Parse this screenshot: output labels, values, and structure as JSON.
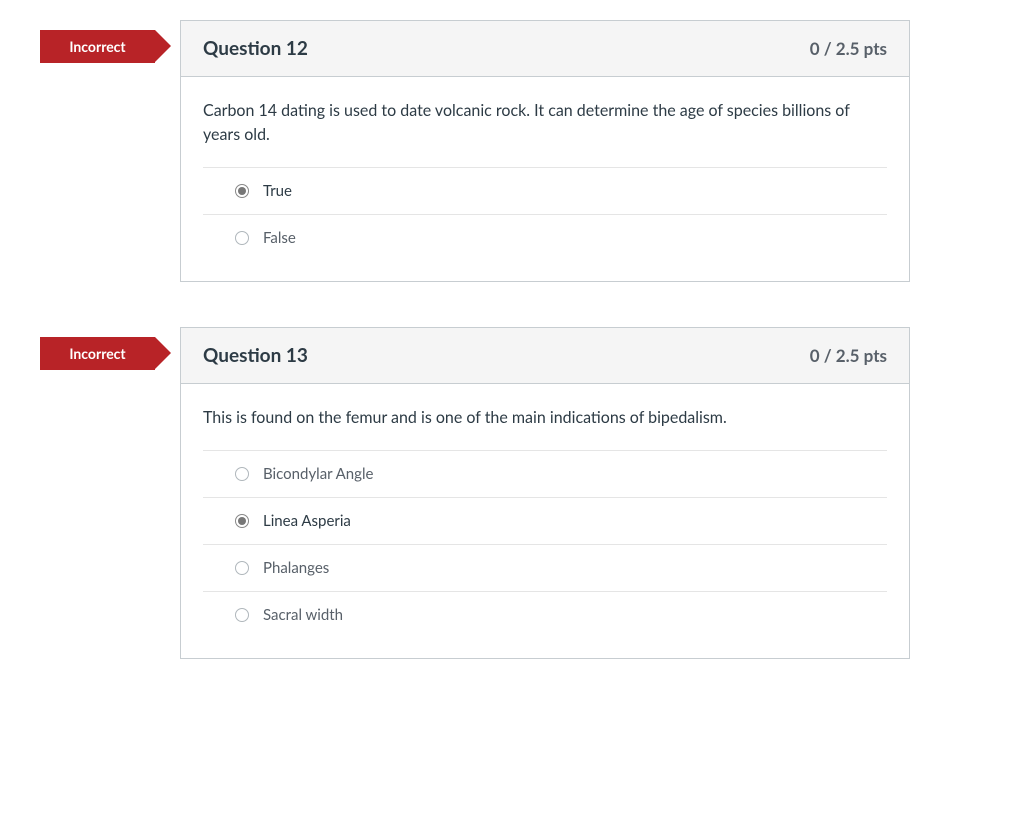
{
  "colors": {
    "badge_bg": "#b82327",
    "badge_text": "#ffffff",
    "card_border": "#c7cdd1",
    "header_bg": "#f5f5f5",
    "title_text": "#2d3b45",
    "points_text": "#586069",
    "body_text": "#2d3b45",
    "answer_text": "#586069",
    "divider": "#e5e5e5"
  },
  "questions": [
    {
      "status": "Incorrect",
      "title": "Question 12",
      "points": "0 / 2.5 pts",
      "text": "Carbon 14 dating is used to date volcanic rock.  It can determine the age of species billions of years old.",
      "answers": [
        {
          "label": "True",
          "selected": true
        },
        {
          "label": "False",
          "selected": false
        }
      ]
    },
    {
      "status": "Incorrect",
      "title": "Question 13",
      "points": "0 / 2.5 pts",
      "text": "This is found on the femur and is one of the main indications of bipedalism.",
      "answers": [
        {
          "label": "Bicondylar Angle",
          "selected": false
        },
        {
          "label": "Linea Asperia",
          "selected": true
        },
        {
          "label": "Phalanges",
          "selected": false
        },
        {
          "label": "Sacral width",
          "selected": false
        }
      ]
    }
  ]
}
